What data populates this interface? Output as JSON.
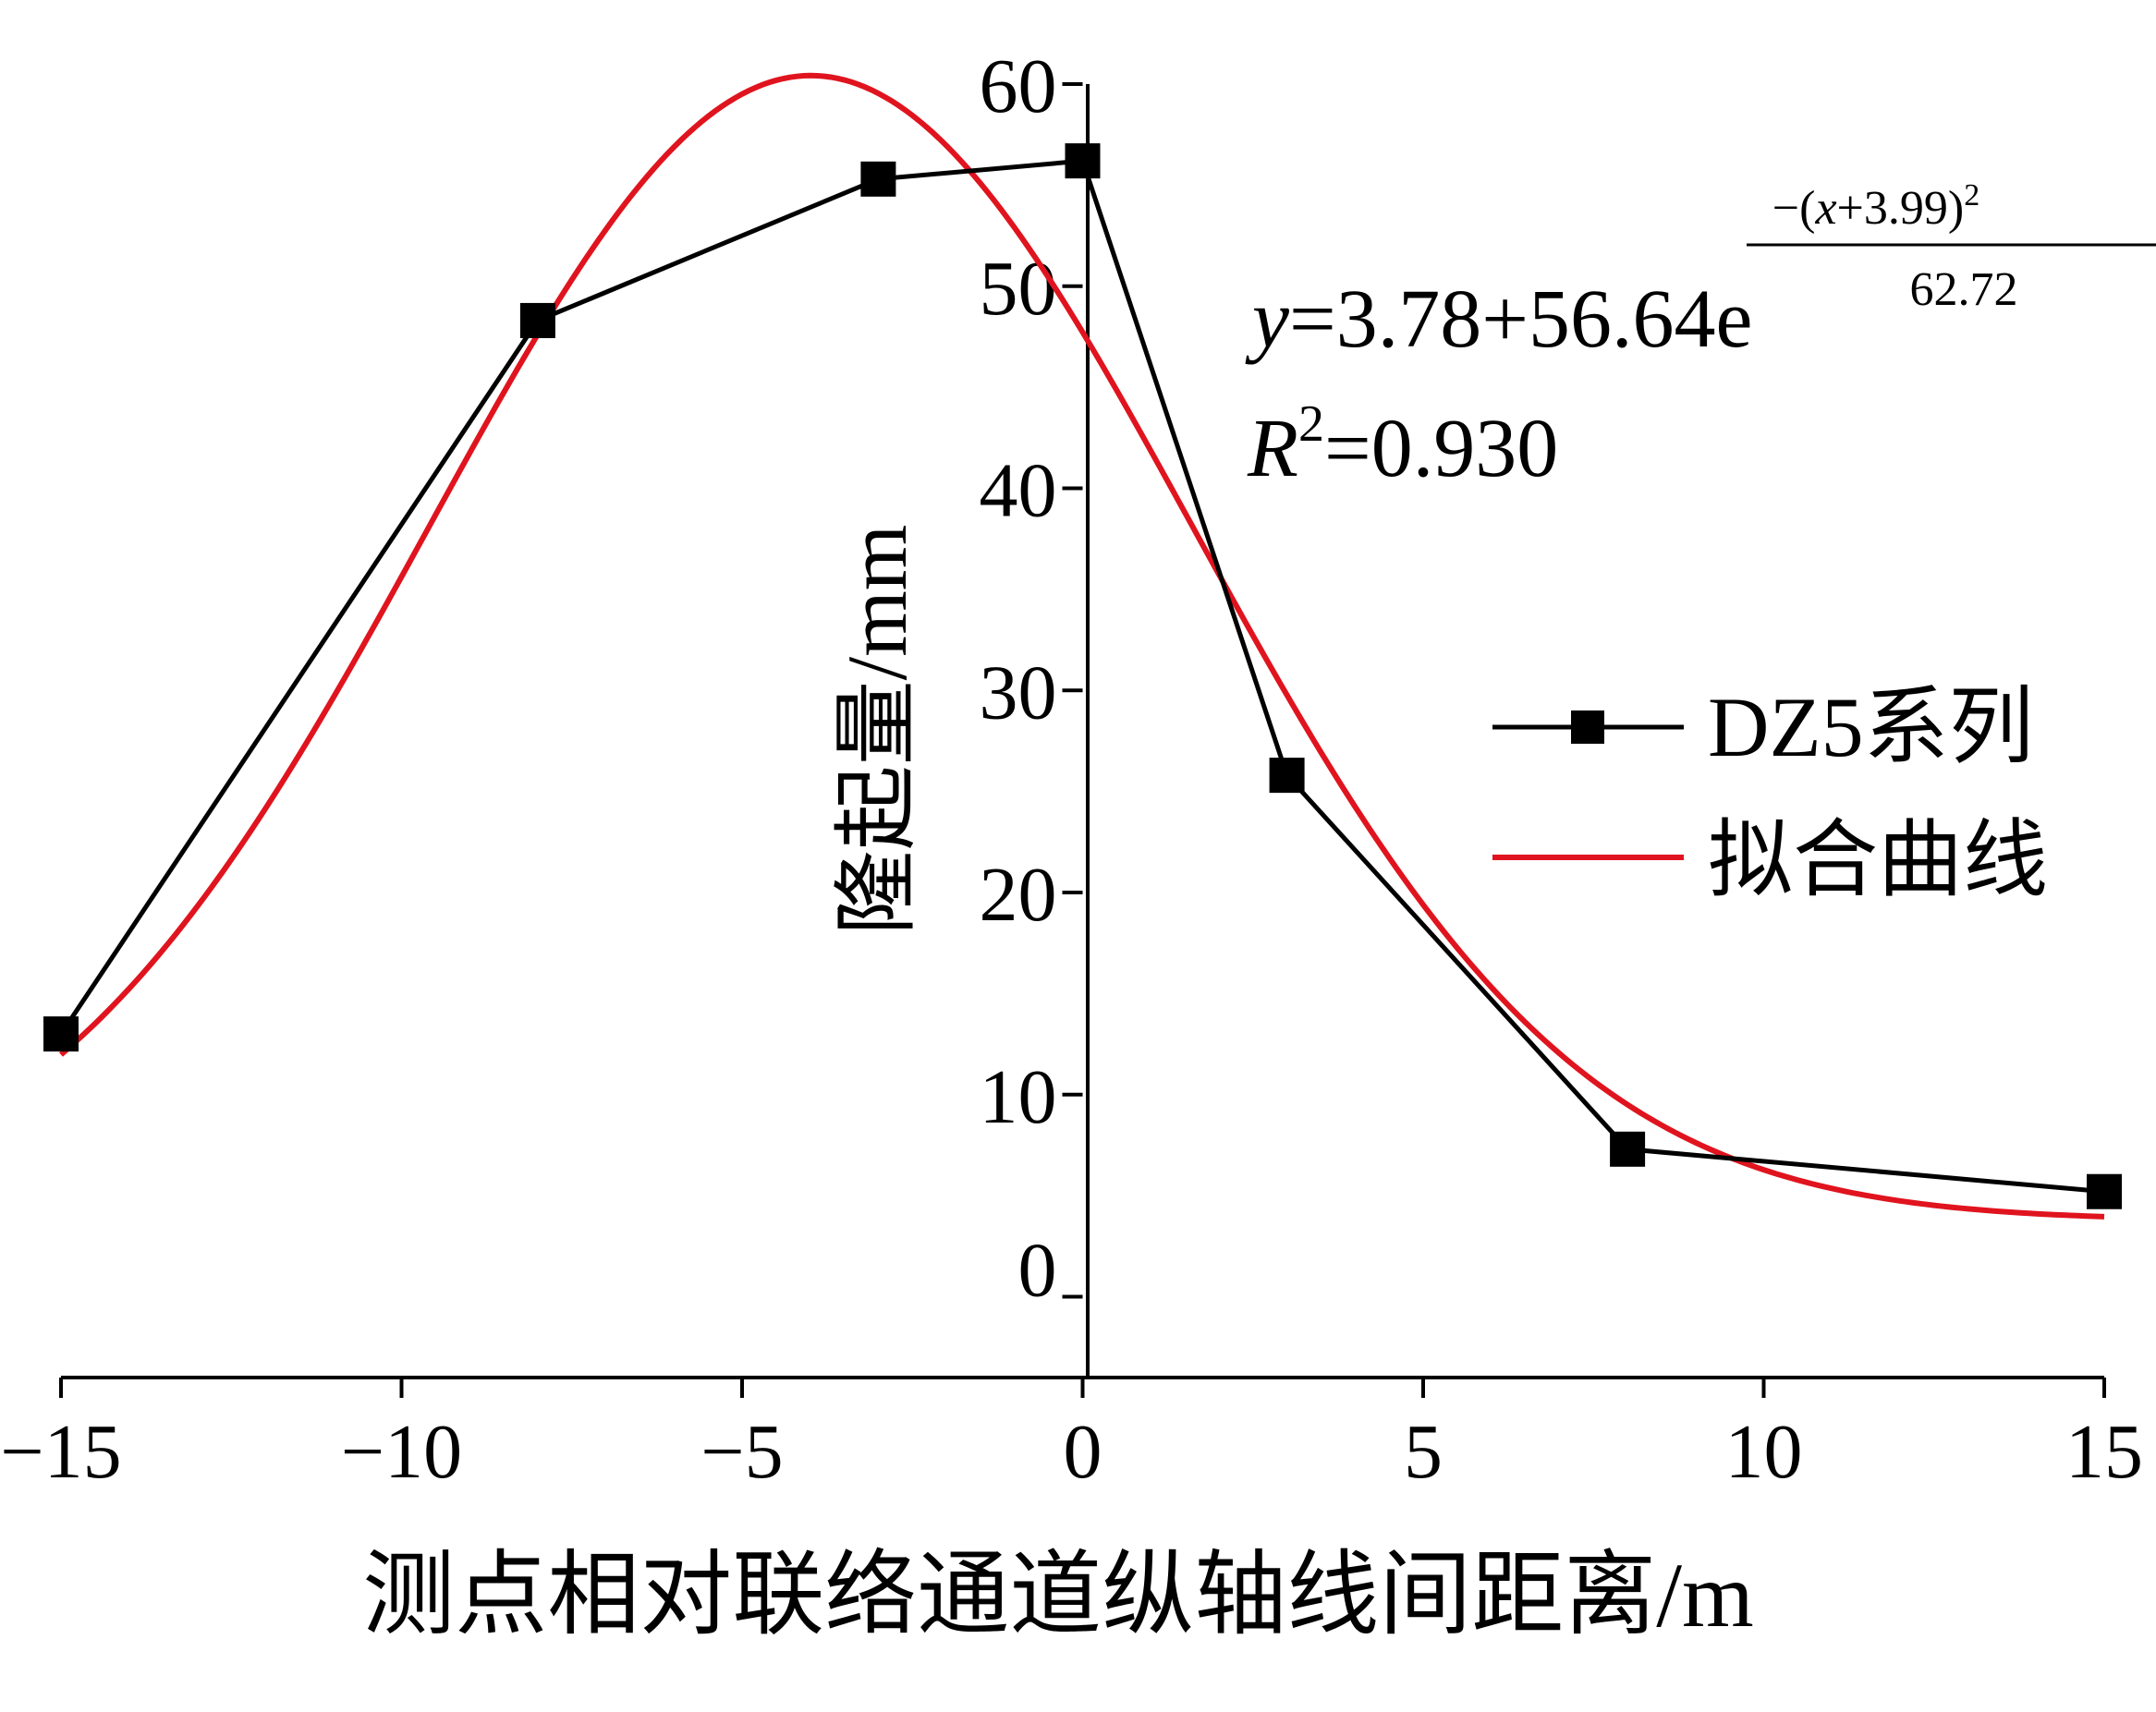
{
  "chart_data": {
    "type": "line",
    "xlabel": "测点相对联络通道纵轴线间距离/m",
    "ylabel": "隆起量/mm",
    "xlim": [
      -15,
      15
    ],
    "ylim": [
      -4,
      60
    ],
    "x_ticks": [
      -15,
      -10,
      -5,
      0,
      5,
      10,
      15
    ],
    "x_tick_labels": [
      "−15",
      "−10",
      "−5",
      "0",
      "5",
      "10",
      "15"
    ],
    "y_ticks": [
      0,
      10,
      20,
      30,
      40,
      50,
      60
    ],
    "y_tick_labels": [
      "0",
      "10",
      "20",
      "30",
      "40",
      "50",
      "60"
    ],
    "grid": false,
    "legend_position": "right",
    "series": [
      {
        "name": "DZ5系列",
        "color": "#000000",
        "marker": "square",
        "x": [
          -15,
          -8,
          -3,
          0,
          3,
          8,
          15
        ],
        "y": [
          13.0,
          48.3,
          55.3,
          56.2,
          25.8,
          7.3,
          5.2
        ]
      },
      {
        "name": "拟合曲线",
        "color": "#e0141e",
        "marker": "none",
        "function": {
          "a": 3.78,
          "b": 56.64,
          "c": 3.99,
          "d": 62.72,
          "x_range": [
            -15,
            15
          ]
        }
      }
    ],
    "annotations": {
      "equation_main": "=3.78+56.64e",
      "equation_y": "y",
      "exponent_numerator_prefix": "−(",
      "exponent_numerator_x": "x",
      "exponent_numerator_rest": "+3.99)",
      "exponent_numerator_sup": "2",
      "exponent_denominator": "62.72",
      "r2_symbol": "R",
      "r2_sup": "2",
      "r2_value": "=0.930"
    }
  }
}
